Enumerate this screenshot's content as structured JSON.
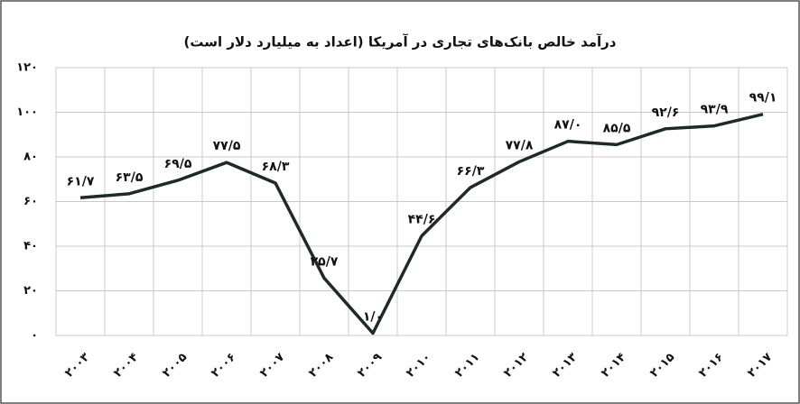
{
  "chart_data": {
    "type": "line",
    "title": "درآمد خالص بانک‌های تجاری در آمریکا (اعداد به میلیارد دلار است)",
    "categories": [
      "۲۰۰۳",
      "۲۰۰۴",
      "۲۰۰۵",
      "۲۰۰۶",
      "۲۰۰۷",
      "۲۰۰۸",
      "۲۰۰۹",
      "۲۰۱۰",
      "۲۰۱۱",
      "۲۰۱۲",
      "۲۰۱۳",
      "۲۰۱۴",
      "۲۰۱۵",
      "۲۰۱۶",
      "۲۰۱۷"
    ],
    "series": [
      {
        "color": "#1e2a2a",
        "values": [
          61.7,
          63.5,
          69.5,
          77.5,
          68.3,
          25.7,
          1.0,
          44.6,
          66.3,
          77.8,
          87.0,
          85.5,
          92.6,
          93.9,
          99.1
        ],
        "value_labels": [
          "۶۱/۷",
          "۶۳/۵",
          "۶۹/۵",
          "۷۷/۵",
          "۶۸/۳",
          "۲۵/۷",
          "۱/۰",
          "۴۴/۶",
          "۶۶/۳",
          "۷۷/۸",
          "۸۷/۰",
          "۸۵/۵",
          "۹۲/۶",
          "۹۳/۹",
          "۹۹/۱"
        ]
      }
    ],
    "ylim": [
      0,
      120
    ],
    "yticks": [
      {
        "value": 0,
        "label": "۰"
      },
      {
        "value": 20,
        "label": "۲۰"
      },
      {
        "value": 40,
        "label": "۴۰"
      },
      {
        "value": 60,
        "label": "۶۰"
      },
      {
        "value": 80,
        "label": "۸۰"
      },
      {
        "value": 100,
        "label": "۱۰۰"
      },
      {
        "value": 120,
        "label": "۱۲۰"
      }
    ],
    "grid": true
  }
}
